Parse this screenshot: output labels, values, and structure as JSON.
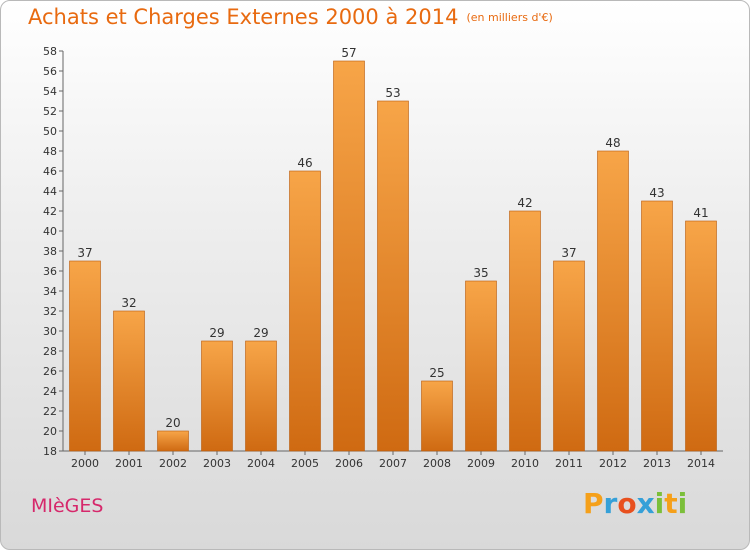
{
  "title": "Achats et Charges Externes 2000 à 2014",
  "subtitle": "(en milliers d'€)",
  "commune": "MIèGES",
  "logo": {
    "letters": [
      "P",
      "r",
      "o",
      "x",
      "i",
      "t",
      "i"
    ],
    "colors": [
      "#f5a01a",
      "#35a0d8",
      "#e8501e",
      "#35a0d8",
      "#7bbf3a",
      "#f5a01a",
      "#7bbf3a"
    ]
  },
  "colors": {
    "title": "#e86a10",
    "commune": "#d6286b",
    "bar_light": "#f7a548",
    "bar_dark": "#cf6a12"
  },
  "chart_data": {
    "type": "bar",
    "categories": [
      "2000",
      "2001",
      "2002",
      "2003",
      "2004",
      "2005",
      "2006",
      "2007",
      "2008",
      "2009",
      "2010",
      "2011",
      "2012",
      "2013",
      "2014"
    ],
    "values": [
      37,
      32,
      20,
      29,
      29,
      46,
      57,
      53,
      25,
      35,
      42,
      37,
      48,
      43,
      41
    ],
    "ylim": [
      18,
      58
    ],
    "yticks": [
      18,
      20,
      22,
      24,
      26,
      28,
      30,
      32,
      34,
      36,
      38,
      40,
      42,
      44,
      46,
      48,
      50,
      52,
      54,
      56,
      58
    ],
    "grid": false
  }
}
